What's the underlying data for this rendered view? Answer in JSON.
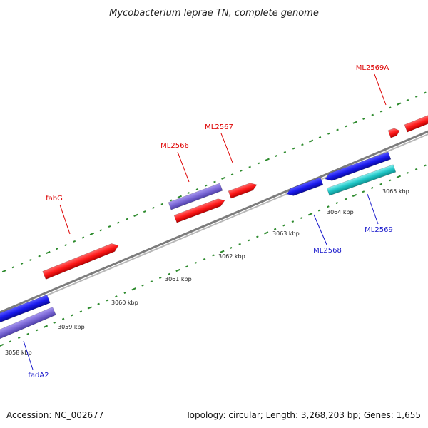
{
  "title": "Mycobacterium leprae TN, complete genome",
  "footer": {
    "accession": "Accession: NC_002677",
    "summary": "Topology: circular; Length: 3,268,203 bp; Genes: 1,655"
  },
  "colors": {
    "backbone": "#8c8c8c",
    "forward_cds": "#ff1a1a",
    "reverse_cds": "#1a1aee",
    "purple_cds": "#7b68d6",
    "cyan_cds": "#20c8c8",
    "tick": "#2e8b2e",
    "forward_label": "#dd0000",
    "reverse_label": "#1a1acc"
  },
  "ticks": [
    {
      "label": "3058 kbp",
      "kbp": 3058
    },
    {
      "label": "3059 kbp",
      "kbp": 3059
    },
    {
      "label": "3060 kbp",
      "kbp": 3060
    },
    {
      "label": "3061 kbp",
      "kbp": 3061
    },
    {
      "label": "3062 kbp",
      "kbp": 3062
    },
    {
      "label": "3063 kbp",
      "kbp": 3063
    },
    {
      "label": "3064 kbp",
      "kbp": 3064
    },
    {
      "label": "3065 kbp",
      "kbp": 3065
    }
  ],
  "genes": [
    {
      "name": "fabG",
      "strand": "forward",
      "color": "forward_cds"
    },
    {
      "name": "ML2566",
      "strand": "forward",
      "color": "purple_cds"
    },
    {
      "name": "ML2567",
      "strand": "forward",
      "color": "forward_cds"
    },
    {
      "name": "ML2569A",
      "strand": "forward",
      "color": "forward_cds"
    },
    {
      "name": "fadA2",
      "strand": "reverse",
      "color": "purple_cds"
    },
    {
      "name": "ML2568",
      "strand": "reverse",
      "color": "reverse_cds"
    },
    {
      "name": "ML2569",
      "strand": "reverse",
      "color": "cyan_cds"
    }
  ]
}
